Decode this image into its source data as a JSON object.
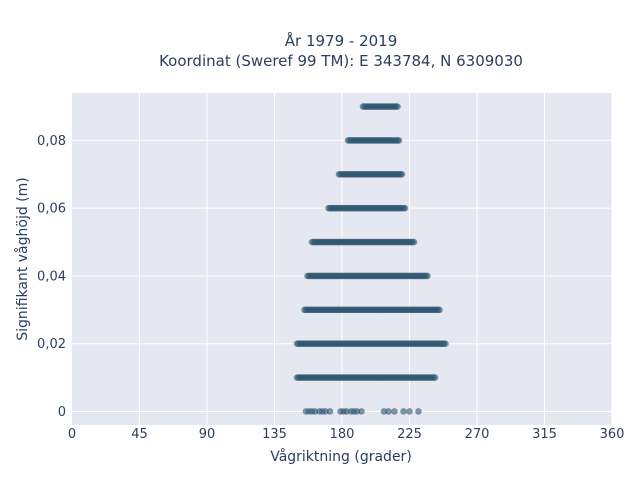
{
  "chart_data": {
    "type": "scatter",
    "title_line1": "År 1979 - 2019",
    "title_line2": "Koordinat (Sweref 99 TM): E 343784, N 6309030",
    "xlabel": "Vågriktning (grader)",
    "ylabel": "Signifikant våghöjd (m)",
    "xlim": [
      0,
      360
    ],
    "ylim": [
      -0.004,
      0.094
    ],
    "xticks": [
      0,
      45,
      90,
      135,
      180,
      225,
      270,
      315,
      360
    ],
    "xtick_labels": [
      "0",
      "45",
      "90",
      "135",
      "180",
      "225",
      "270",
      "315",
      "360"
    ],
    "yticks": [
      0,
      0.02,
      0.04,
      0.06,
      0.08
    ],
    "ytick_labels": [
      "0",
      "0,02",
      "0,04",
      "0,06",
      "0,08"
    ],
    "grid": true,
    "marker_color": "#2f5570",
    "plot_bg": "#e5e8f0",
    "bands": [
      {
        "y": 0.0,
        "x": [
          156,
          158,
          160,
          162,
          165,
          167,
          169,
          172,
          179,
          181,
          183,
          186,
          188,
          190,
          193,
          208,
          211,
          215,
          221,
          225,
          231
        ]
      },
      {
        "y": 0.01,
        "x_min": 150,
        "x_max": 242
      },
      {
        "y": 0.02,
        "x_min": 150,
        "x_max": 249
      },
      {
        "y": 0.03,
        "x_min": 155,
        "x_max": 245
      },
      {
        "y": 0.04,
        "x_min": 157,
        "x_max": 237
      },
      {
        "y": 0.05,
        "x_min": 160,
        "x_max": 228
      },
      {
        "y": 0.06,
        "x_min": 171,
        "x_max": 222
      },
      {
        "y": 0.07,
        "x_min": 178,
        "x_max": 220
      },
      {
        "y": 0.08,
        "x_min": 184,
        "x_max": 218
      },
      {
        "y": 0.09,
        "x_min": 194,
        "x_max": 217
      }
    ]
  }
}
